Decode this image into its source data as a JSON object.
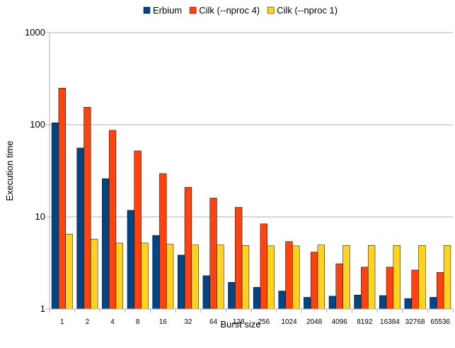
{
  "chart_data": {
    "type": "bar",
    "xlabel": "Burst size",
    "ylabel": "Execution time",
    "yscale": "log",
    "ylim": [
      1,
      1000
    ],
    "yticks": [
      "1",
      "10",
      "100",
      "1000"
    ],
    "grid": "horizontal",
    "legend_position": "top",
    "categories": [
      "1",
      "2",
      "4",
      "8",
      "16",
      "32",
      "64",
      "128",
      "256",
      "1024",
      "2048",
      "4096",
      "8192",
      "16384",
      "32768",
      "65536"
    ],
    "series": [
      {
        "name": "Erbium",
        "color": "#004586",
        "values": [
          105,
          56,
          26,
          11.8,
          6.3,
          3.85,
          2.3,
          1.95,
          1.72,
          1.57,
          1.34,
          1.38,
          1.42,
          1.4,
          1.3,
          1.34
        ]
      },
      {
        "name": "Cilk (--nproc 4)",
        "color": "#ff420e",
        "values": [
          250,
          155,
          87,
          52,
          29.5,
          21,
          16,
          12.7,
          8.4,
          5.4,
          4.15,
          3.1,
          2.85,
          2.85,
          2.65,
          2.5
        ]
      },
      {
        "name": "Cilk (--nproc 1)",
        "color": "#ffd320",
        "values": [
          6.5,
          5.75,
          5.2,
          5.2,
          5.05,
          4.95,
          4.95,
          4.9,
          4.85,
          4.85,
          4.95,
          4.9,
          4.9,
          4.9,
          4.9,
          4.9
        ]
      }
    ]
  }
}
